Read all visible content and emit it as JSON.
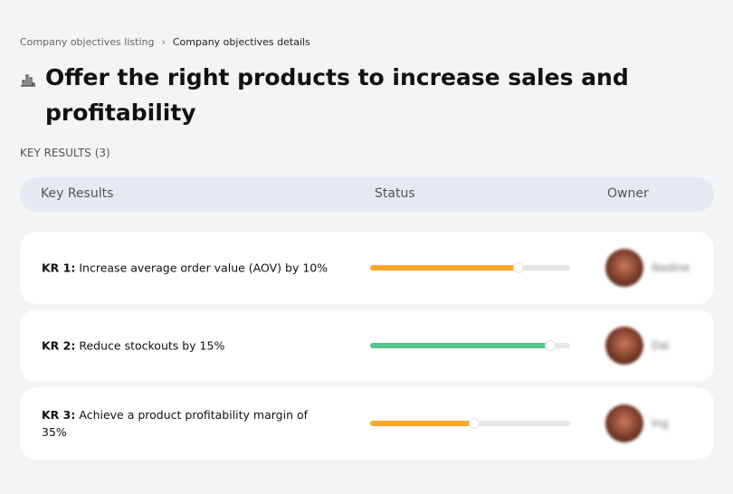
{
  "breadcrumb": {
    "items": [
      "Company objectives listing",
      "Company objectives details"
    ],
    "separator": "›"
  },
  "page_title": "Offer the right products to increase sales and profitability",
  "title_icon": "bar-chart-icon",
  "key_results_count_label": "KEY RESULTS (3)",
  "table": {
    "headers": {
      "key_results": "Key Results",
      "status": "Status",
      "owner": "Owner"
    }
  },
  "colors": {
    "orange": "#ffa62e",
    "green": "#52c48a"
  },
  "rows": [
    {
      "label": "KR 1:",
      "text": "Increase average order value (AOV) by 10%",
      "progress": 74,
      "color": "#ffa62e",
      "owner": "Nadine"
    },
    {
      "label": "KR 2:",
      "text": " Reduce stockouts by 15%",
      "progress": 90,
      "color": "#52c48a",
      "owner": "Dai"
    },
    {
      "label": "KR 3:",
      "text": "Achieve a product profitability margin of 35%",
      "progress": 52,
      "color": "#ffa62e",
      "owner": "Ing"
    }
  ]
}
